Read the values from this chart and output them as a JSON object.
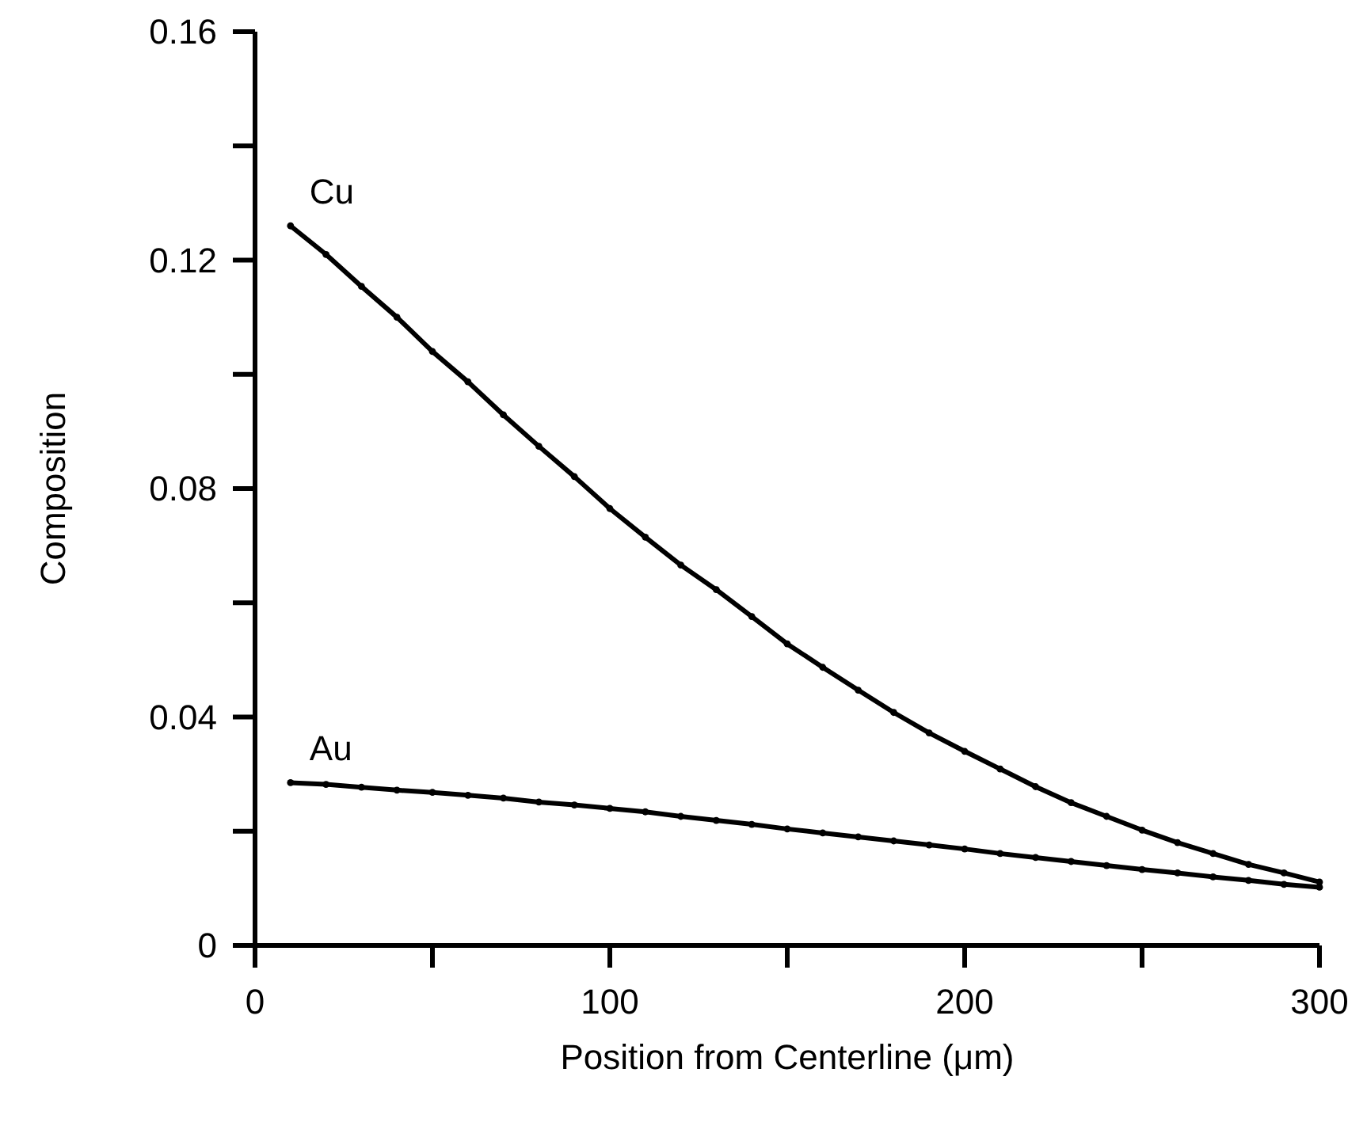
{
  "chart_data": {
    "type": "line",
    "xlabel": "Position from Centerline (μm)",
    "ylabel": "Composition",
    "x": [
      10,
      20,
      30,
      40,
      50,
      60,
      70,
      80,
      90,
      100,
      110,
      120,
      130,
      140,
      150,
      160,
      170,
      180,
      190,
      200,
      210,
      220,
      230,
      240,
      250,
      260,
      270,
      280,
      290,
      300
    ],
    "series": [
      {
        "name": "Cu",
        "color": "#000000",
        "values": [
          0.126,
          0.121,
          0.1154,
          0.11,
          0.104,
          0.0987,
          0.0929,
          0.0874,
          0.0821,
          0.0765,
          0.0715,
          0.0666,
          0.0623,
          0.0576,
          0.0528,
          0.0487,
          0.0447,
          0.0408,
          0.0372,
          0.034,
          0.0309,
          0.0278,
          0.025,
          0.0226,
          0.0202,
          0.018,
          0.0161,
          0.0142,
          0.0127,
          0.0111
        ]
      },
      {
        "name": "Au",
        "color": "#000000",
        "values": [
          0.0285,
          0.0282,
          0.0277,
          0.0272,
          0.0268,
          0.0263,
          0.0258,
          0.0251,
          0.0246,
          0.024,
          0.0234,
          0.0226,
          0.0219,
          0.0212,
          0.0204,
          0.0197,
          0.019,
          0.0183,
          0.0176,
          0.0169,
          0.0161,
          0.0154,
          0.0147,
          0.014,
          0.0133,
          0.0127,
          0.012,
          0.0114,
          0.0107,
          0.0102
        ]
      }
    ],
    "xlim": [
      0,
      300
    ],
    "xticks": [
      0,
      {
        "value": 50,
        "label": null
      },
      100,
      {
        "value": 150,
        "label": null
      },
      200,
      {
        "value": 250,
        "label": null
      },
      300
    ],
    "ylim": [
      0,
      0.16
    ],
    "yticks": [
      0,
      {
        "value": 0.02,
        "label": null
      },
      0.04,
      {
        "value": 0.06,
        "label": null
      },
      0.08,
      {
        "value": 0.1,
        "label": null
      },
      0.12,
      {
        "value": 0.14,
        "label": null
      },
      0.16
    ],
    "marker": "circle",
    "line_style": "solid",
    "grid": false,
    "legend": false
  }
}
